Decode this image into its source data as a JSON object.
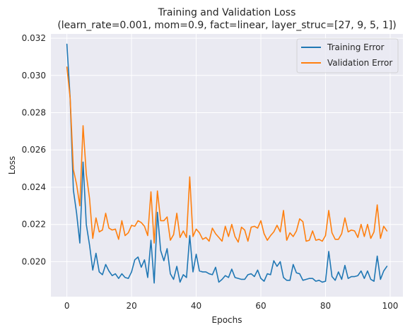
{
  "chart_data": {
    "type": "line",
    "title": "Training and Validation Loss",
    "subtitle": "(learn_rate=0.001, mom=0.9, fact=linear, layer_struc=[27, 9, 5, 1])",
    "xlabel": "Epochs",
    "ylabel": "Loss",
    "xlim": [
      -4.95,
      103.95
    ],
    "ylim": [
      0.01812,
      0.03223
    ],
    "x_ticks": [
      0,
      20,
      40,
      60,
      80,
      100
    ],
    "y_ticks": [
      0.02,
      0.022,
      0.024,
      0.026,
      0.028,
      0.03,
      0.032
    ],
    "y_tick_labels": [
      "0.020",
      "0.022",
      "0.024",
      "0.026",
      "0.028",
      "0.030",
      "0.032"
    ],
    "grid": true,
    "legend_position": "top-right",
    "x": [
      0,
      1,
      2,
      3,
      4,
      5,
      6,
      7,
      8,
      9,
      10,
      11,
      12,
      13,
      14,
      15,
      16,
      17,
      18,
      19,
      20,
      21,
      22,
      23,
      24,
      25,
      26,
      27,
      28,
      29,
      30,
      31,
      32,
      33,
      34,
      35,
      36,
      37,
      38,
      39,
      40,
      41,
      42,
      43,
      44,
      45,
      46,
      47,
      48,
      49,
      50,
      51,
      52,
      53,
      54,
      55,
      56,
      57,
      58,
      59,
      60,
      61,
      62,
      63,
      64,
      65,
      66,
      67,
      68,
      69,
      70,
      71,
      72,
      73,
      74,
      75,
      76,
      77,
      78,
      79,
      80,
      81,
      82,
      83,
      84,
      85,
      86,
      87,
      88,
      89,
      90,
      91,
      92,
      93,
      94,
      95,
      96,
      97,
      98,
      99
    ],
    "series": [
      {
        "name": "Training Error",
        "color": "#1f77b4",
        "values": [
          0.03168,
          0.0288,
          0.02385,
          0.0226,
          0.021,
          0.02535,
          0.022,
          0.0209,
          0.01955,
          0.02045,
          0.01945,
          0.0193,
          0.01985,
          0.0195,
          0.01925,
          0.01935,
          0.0191,
          0.01935,
          0.01915,
          0.0191,
          0.01945,
          0.0201,
          0.02025,
          0.0197,
          0.0201,
          0.01915,
          0.02115,
          0.01885,
          0.02265,
          0.0206,
          0.02005,
          0.0207,
          0.01935,
          0.01905,
          0.01975,
          0.0189,
          0.0193,
          0.01915,
          0.0214,
          0.01945,
          0.0204,
          0.0195,
          0.01945,
          0.01945,
          0.01935,
          0.0193,
          0.0197,
          0.0189,
          0.01905,
          0.01925,
          0.01915,
          0.0196,
          0.01915,
          0.0191,
          0.01905,
          0.01905,
          0.0193,
          0.01935,
          0.0192,
          0.01955,
          0.0191,
          0.01895,
          0.01935,
          0.0193,
          0.02005,
          0.01975,
          0.02,
          0.01915,
          0.019,
          0.019,
          0.01985,
          0.0194,
          0.01935,
          0.019,
          0.01905,
          0.0191,
          0.0191,
          0.01895,
          0.019,
          0.0189,
          0.01895,
          0.02055,
          0.0192,
          0.019,
          0.01945,
          0.01905,
          0.0198,
          0.0191,
          0.0192,
          0.0192,
          0.01925,
          0.0195,
          0.0191,
          0.0195,
          0.01905,
          0.01895,
          0.0203,
          0.01905,
          0.0195,
          0.01975
        ]
      },
      {
        "name": "Validation Error",
        "color": "#ff7f0e",
        "values": [
          0.03045,
          0.0288,
          0.02495,
          0.02415,
          0.023,
          0.0273,
          0.0247,
          0.0234,
          0.02125,
          0.02235,
          0.0216,
          0.0217,
          0.0226,
          0.0218,
          0.0217,
          0.02175,
          0.0212,
          0.0222,
          0.0214,
          0.02155,
          0.02195,
          0.0219,
          0.0222,
          0.0221,
          0.0219,
          0.0214,
          0.02375,
          0.021,
          0.0238,
          0.0222,
          0.0222,
          0.0224,
          0.02115,
          0.02145,
          0.0226,
          0.0213,
          0.02165,
          0.0213,
          0.02455,
          0.02135,
          0.02175,
          0.02155,
          0.0212,
          0.0213,
          0.0211,
          0.0218,
          0.0215,
          0.0213,
          0.0211,
          0.0219,
          0.02135,
          0.022,
          0.02135,
          0.02105,
          0.02185,
          0.0217,
          0.0211,
          0.02185,
          0.0219,
          0.0218,
          0.0222,
          0.0215,
          0.02115,
          0.0214,
          0.0216,
          0.02195,
          0.0216,
          0.02275,
          0.02115,
          0.02155,
          0.02135,
          0.02165,
          0.0223,
          0.02215,
          0.0211,
          0.02115,
          0.02165,
          0.02115,
          0.0212,
          0.0211,
          0.0214,
          0.02275,
          0.02155,
          0.0212,
          0.0212,
          0.0215,
          0.02235,
          0.0216,
          0.0217,
          0.02165,
          0.0213,
          0.022,
          0.02135,
          0.022,
          0.02125,
          0.0216,
          0.02305,
          0.02125,
          0.0219,
          0.02165
        ]
      }
    ]
  }
}
